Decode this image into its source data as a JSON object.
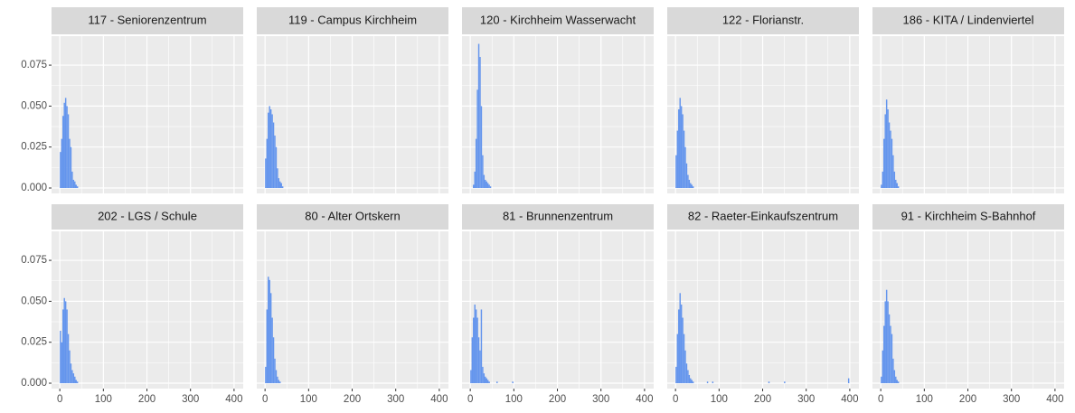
{
  "chart_data": {
    "type": "histogram",
    "color": "#6495ed",
    "grid": true,
    "xlim": [
      -19,
      421
    ],
    "ylim": [
      -0.0033,
      0.0927
    ],
    "xticks": [
      0,
      100,
      200,
      300,
      400
    ],
    "yticks": [
      {
        "value": 0,
        "label": "0.000"
      },
      {
        "value": 0.025,
        "label": "0.025"
      },
      {
        "value": 0.05,
        "label": "0.050"
      },
      {
        "value": 0.075,
        "label": "0.075"
      }
    ],
    "facets": [
      {
        "title": "117 - Seniorenzentrum",
        "bins": [
          0,
          3,
          6,
          9,
          12,
          15,
          18,
          21,
          24,
          27,
          30,
          33,
          36,
          39,
          42,
          45
        ],
        "values": [
          0.022,
          0.03,
          0.044,
          0.052,
          0.055,
          0.05,
          0.045,
          0.03,
          0.025,
          0.01,
          0.005,
          0.004,
          0.002,
          0.001,
          0
        ]
      },
      {
        "title": "119 - Campus Kirchheim",
        "bins": [
          0,
          3,
          6,
          9,
          12,
          15,
          18,
          21,
          24,
          27,
          30,
          33,
          36,
          39,
          42,
          45
        ],
        "values": [
          0.018,
          0.03,
          0.046,
          0.05,
          0.048,
          0.045,
          0.04,
          0.032,
          0.025,
          0.012,
          0.006,
          0.004,
          0.003,
          0.001,
          0
        ]
      },
      {
        "title": "120 - Kirchheim Wasserwacht",
        "bins": [
          0,
          3,
          6,
          9,
          12,
          15,
          18,
          21,
          24,
          27,
          30,
          33,
          36,
          39,
          42,
          45,
          48,
          51
        ],
        "values": [
          0,
          0,
          0.002,
          0.01,
          0.03,
          0.06,
          0.088,
          0.08,
          0.05,
          0.02,
          0.008,
          0.005,
          0.004,
          0.003,
          0.002,
          0.001,
          0
        ]
      },
      {
        "title": "122 - Florianstr.",
        "bins": [
          0,
          3,
          6,
          9,
          12,
          15,
          18,
          21,
          24,
          27,
          30,
          33,
          36,
          39,
          42,
          45
        ],
        "values": [
          0.02,
          0.035,
          0.048,
          0.055,
          0.05,
          0.045,
          0.035,
          0.025,
          0.015,
          0.008,
          0.005,
          0.003,
          0.002,
          0.001,
          0
        ]
      },
      {
        "title": "186 - KITA / Lindenviertel",
        "bins": [
          0,
          3,
          6,
          9,
          12,
          15,
          18,
          21,
          24,
          27,
          30,
          33,
          36,
          39,
          42,
          45
        ],
        "values": [
          0.002,
          0.01,
          0.03,
          0.045,
          0.054,
          0.048,
          0.04,
          0.035,
          0.03,
          0.02,
          0.01,
          0.005,
          0.003,
          0.001,
          0
        ]
      },
      {
        "title": "202 - LGS / Schule",
        "bins": [
          0,
          3,
          6,
          9,
          12,
          15,
          18,
          21,
          24,
          27,
          30,
          33,
          36,
          39,
          42,
          45
        ],
        "values": [
          0.032,
          0.025,
          0.045,
          0.052,
          0.05,
          0.045,
          0.03,
          0.02,
          0.012,
          0.008,
          0.006,
          0.004,
          0.002,
          0.001,
          0
        ]
      },
      {
        "title": "80 - Alter Ortskern",
        "bins": [
          0,
          3,
          6,
          9,
          12,
          15,
          18,
          21,
          24,
          27,
          30,
          33,
          36,
          39,
          42,
          45
        ],
        "values": [
          0.01,
          0.045,
          0.065,
          0.063,
          0.055,
          0.04,
          0.028,
          0.015,
          0.008,
          0.004,
          0.002,
          0.001,
          0,
          0,
          0
        ]
      },
      {
        "title": "81 - Brunnenzentrum",
        "bins": [
          0,
          3,
          6,
          9,
          12,
          15,
          18,
          21,
          24,
          27,
          30,
          33,
          36,
          39,
          42,
          45,
          60,
          63,
          96,
          99
        ],
        "values": [
          0.008,
          0.028,
          0.04,
          0.048,
          0.045,
          0.04,
          0.028,
          0.02,
          0.045,
          0.01,
          0.006,
          0.004,
          0.003,
          0.002,
          0.001,
          0,
          0.001,
          0,
          0.001
        ]
      },
      {
        "title": "82 - Raeter-Einkaufszentrum",
        "bins": [
          0,
          3,
          6,
          9,
          12,
          15,
          18,
          21,
          24,
          27,
          30,
          33,
          36,
          39,
          42,
          45,
          72,
          75,
          84,
          87,
          213,
          216,
          249,
          252,
          396,
          399
        ],
        "values": [
          0.01,
          0.03,
          0.045,
          0.055,
          0.048,
          0.04,
          0.03,
          0.02,
          0.012,
          0.008,
          0.005,
          0.003,
          0.002,
          0.001,
          0,
          0,
          0.001,
          0,
          0.001,
          0,
          0.001,
          0,
          0.001,
          0,
          0.003
        ]
      },
      {
        "title": "91 - Kirchheim S-Bahnhof",
        "bins": [
          0,
          3,
          6,
          9,
          12,
          15,
          18,
          21,
          24,
          27,
          30,
          33,
          36,
          39,
          42,
          45
        ],
        "values": [
          0.004,
          0.02,
          0.035,
          0.05,
          0.057,
          0.05,
          0.042,
          0.035,
          0.03,
          0.015,
          0.008,
          0.004,
          0.002,
          0.001,
          0
        ]
      }
    ]
  }
}
